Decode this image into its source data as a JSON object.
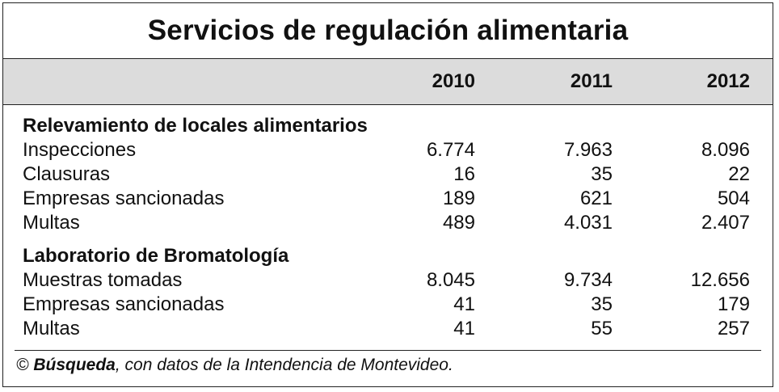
{
  "title": "Servicios de regulación alimentaria",
  "years": [
    "2010",
    "2011",
    "2012"
  ],
  "sections": [
    {
      "title": "Relevamiento de locales alimentarios",
      "rows": [
        {
          "label": "Inspecciones",
          "values": [
            "6.774",
            "7.963",
            "8.096"
          ]
        },
        {
          "label": "Clausuras",
          "values": [
            "16",
            "35",
            "22"
          ]
        },
        {
          "label": "Empresas sancionadas",
          "values": [
            "189",
            "621",
            "504"
          ]
        },
        {
          "label": "Multas",
          "values": [
            "489",
            "4.031",
            "2.407"
          ]
        }
      ]
    },
    {
      "title": "Laboratorio de Bromatología",
      "rows": [
        {
          "label": "Muestras tomadas",
          "values": [
            "8.045",
            "9.734",
            "12.656"
          ]
        },
        {
          "label": "Empresas sancionadas",
          "values": [
            "41",
            "35",
            "179"
          ]
        },
        {
          "label": "Multas",
          "values": [
            "41",
            "55",
            "257"
          ]
        }
      ]
    }
  ],
  "footer": {
    "symbol": "©",
    "source_name": "Búsqueda",
    "source_text": ", con datos de la Intendencia de Montevideo."
  }
}
